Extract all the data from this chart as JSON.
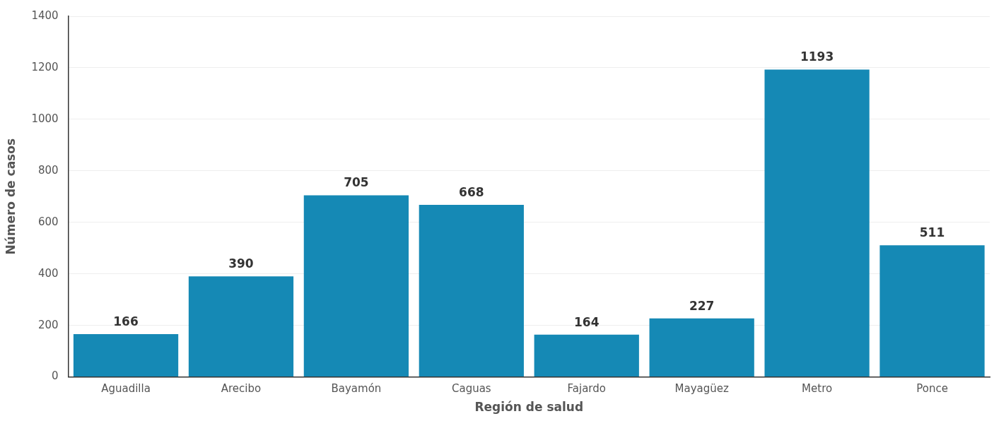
{
  "chart_data": {
    "type": "bar",
    "xlabel": "Región de salud",
    "ylabel": "Número de casos",
    "categories": [
      "Aguadilla",
      "Arecibo",
      "Bayamón",
      "Caguas",
      "Fajardo",
      "Mayagüez",
      "Metro",
      "Ponce"
    ],
    "values": [
      166,
      390,
      705,
      668,
      164,
      227,
      1193,
      511
    ],
    "color": "#1589b5",
    "ylim": [
      0,
      1400
    ],
    "yticks": [
      0,
      200,
      400,
      600,
      800,
      1000,
      1200,
      1400
    ],
    "grid": "y",
    "data_labels": true,
    "legend": false
  }
}
